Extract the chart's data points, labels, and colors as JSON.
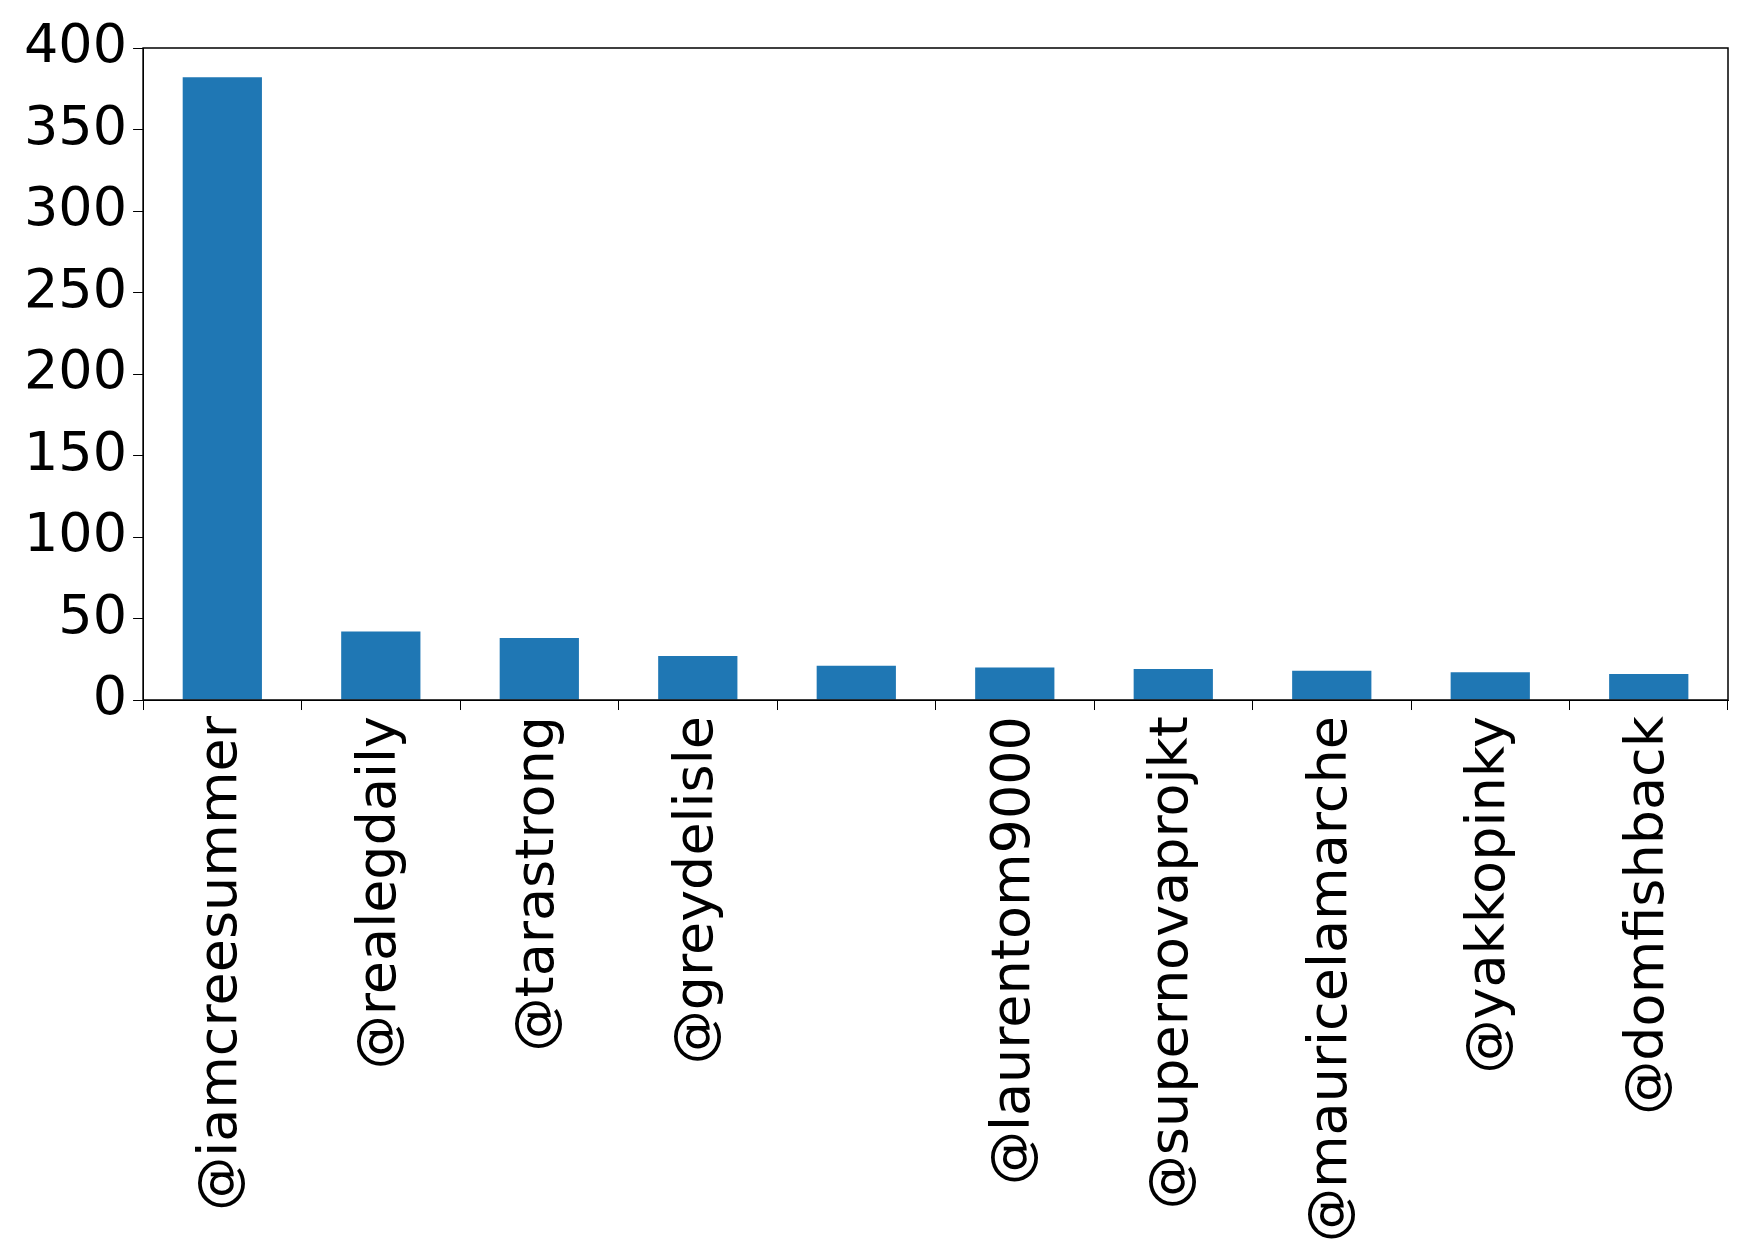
{
  "chart_data": {
    "type": "bar",
    "categories": [
      "@iamcreesummer",
      "@realegdaily",
      "@tarastrong",
      "@greydelisle",
      null,
      "@laurentom9000",
      "@supernovaprojkt",
      "@mauricelamarche",
      "@yakkopinky",
      "@domfishback"
    ],
    "values": [
      382,
      42,
      38,
      27,
      21,
      20,
      19,
      18,
      17,
      16
    ],
    "color": "#1f77b4",
    "ylim": [
      0,
      400
    ],
    "yticks": [
      0,
      50,
      100,
      150,
      200,
      250,
      300,
      350,
      400
    ],
    "grid": false,
    "legend": false
  }
}
